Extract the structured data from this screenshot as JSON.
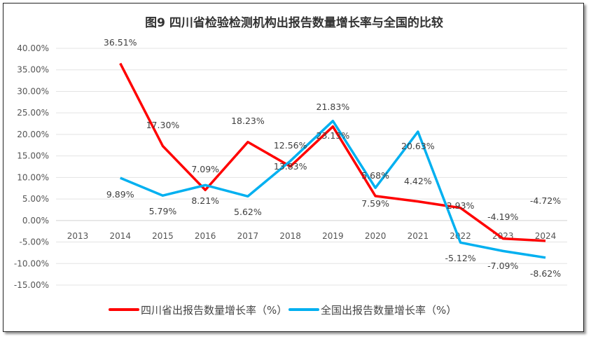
{
  "chart_data": {
    "type": "line",
    "title": "图9  四川省检验检测机构出报告数量增长率与全国的比较",
    "categories": [
      "2013",
      "2014",
      "2015",
      "2016",
      "2017",
      "2018",
      "2019",
      "2020",
      "2021",
      "2022",
      "2023",
      "2024"
    ],
    "ylim": [
      -15,
      40
    ],
    "yticks": [
      "40.00%",
      "35.00%",
      "30.00%",
      "25.00%",
      "20.00%",
      "15.00%",
      "10.00%",
      "5.00%",
      "0.00%",
      "-5.00%",
      "-10.00%",
      "-15.00%"
    ],
    "grid": true,
    "legend": "bottom",
    "series": [
      {
        "name": "四川省出报告数量增长率（%）",
        "color": "#ff0000",
        "values": [
          null,
          36.51,
          17.3,
          7.09,
          18.23,
          12.56,
          21.83,
          5.68,
          4.42,
          2.93,
          -4.19,
          -4.72
        ],
        "labels": [
          "",
          "36.51%",
          "17.30%",
          "7.09%",
          "18.23%",
          "12.56%",
          "21.83%",
          "5.68%",
          "4.42%",
          "2.93%",
          "-4.19%",
          "-4.72%"
        ]
      },
      {
        "name": "全国出报告数量增长率（%）",
        "color": "#00b0f0",
        "values": [
          null,
          9.89,
          5.79,
          8.21,
          5.62,
          13.83,
          23.13,
          7.59,
          20.63,
          -5.12,
          -7.09,
          -8.62
        ],
        "labels": [
          "",
          "9.89%",
          "5.79%",
          "8.21%",
          "5.62%",
          "13.83%",
          "23.13%",
          "7.59%",
          "20.63%",
          "-5.12%",
          "-7.09%",
          "-8.62%"
        ]
      }
    ]
  }
}
